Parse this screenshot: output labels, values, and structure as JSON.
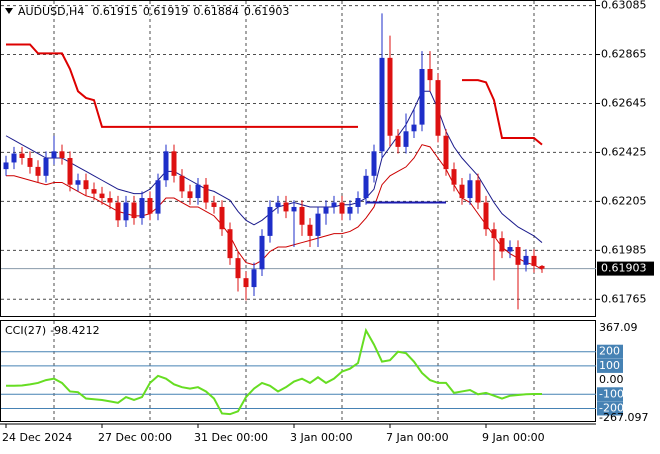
{
  "chart_data": [
    {
      "type": "candlestick",
      "symbol": "AUDUSD,H4",
      "categories": [
        "24 Dec 2024",
        null,
        null,
        null,
        null,
        null,
        null,
        null,
        null,
        null,
        null,
        null,
        "27 Dec 00:00",
        null,
        null,
        null,
        null,
        null,
        null,
        null,
        null,
        null,
        null,
        null,
        "31 Dec 00:00",
        null,
        null,
        null,
        null,
        null,
        null,
        null,
        null,
        null,
        null,
        null,
        "3 Jan 00:00",
        null,
        null,
        null,
        null,
        null,
        null,
        null,
        null,
        null,
        null,
        null,
        "7 Jan 00:00",
        null,
        null,
        null,
        null,
        null,
        null,
        null,
        null,
        null,
        null,
        null,
        "9 Jan 00:00",
        null,
        null,
        null,
        null,
        null,
        null,
        null
      ],
      "open": [
        0.6235,
        0.6238,
        0.6242,
        0.624,
        0.6236,
        0.6232,
        0.624,
        0.6243,
        0.624,
        0.6228,
        0.623,
        0.6226,
        0.6224,
        0.6222,
        0.622,
        0.6212,
        0.622,
        0.6213,
        0.6222,
        0.6215,
        0.623,
        0.6243,
        0.6232,
        0.6225,
        0.6222,
        0.6228,
        0.622,
        0.6218,
        0.6208,
        0.6195,
        0.6186,
        0.6182,
        0.619,
        0.6205,
        0.6218,
        0.622,
        0.6216,
        0.6218,
        0.621,
        0.6205,
        0.6215,
        0.6218,
        0.622,
        0.6215,
        0.6218,
        0.6222,
        0.6232,
        0.6243,
        0.6285,
        0.625,
        0.6245,
        0.6252,
        0.6255,
        0.628,
        0.6275,
        0.625,
        0.6235,
        0.6228,
        0.6222,
        0.623,
        0.622,
        0.6208,
        0.6204,
        0.6198,
        0.62,
        0.6192,
        0.6196,
        0.61915
      ],
      "high": [
        0.6241,
        0.6245,
        0.6245,
        0.6243,
        0.6239,
        0.6243,
        0.625,
        0.6246,
        0.6243,
        0.6233,
        0.6233,
        0.6229,
        0.6227,
        0.6225,
        0.6223,
        0.6223,
        0.6223,
        0.6225,
        0.6225,
        0.6233,
        0.6246,
        0.6246,
        0.6235,
        0.6228,
        0.6231,
        0.6231,
        0.6223,
        0.6221,
        0.6211,
        0.6198,
        0.6189,
        0.6193,
        0.6208,
        0.6221,
        0.6223,
        0.6223,
        0.6221,
        0.6221,
        0.6213,
        0.6218,
        0.6221,
        0.6223,
        0.6223,
        0.6221,
        0.6225,
        0.6235,
        0.6246,
        0.6305,
        0.6295,
        0.6253,
        0.626,
        0.6262,
        0.6288,
        0.6288,
        0.6278,
        0.6253,
        0.6238,
        0.6231,
        0.6233,
        0.6233,
        0.6223,
        0.6211,
        0.6207,
        0.6203,
        0.6203,
        0.6199,
        0.6199,
        0.61919
      ],
      "low": [
        0.6232,
        0.6235,
        0.6237,
        0.6233,
        0.6229,
        0.6229,
        0.6237,
        0.6237,
        0.6225,
        0.6225,
        0.6223,
        0.6221,
        0.6219,
        0.6217,
        0.6209,
        0.6209,
        0.621,
        0.621,
        0.6212,
        0.6212,
        0.6227,
        0.6229,
        0.6222,
        0.6219,
        0.6219,
        0.6217,
        0.6215,
        0.6205,
        0.6192,
        0.618,
        0.6176,
        0.6178,
        0.6187,
        0.6202,
        0.6215,
        0.6213,
        0.62,
        0.6205,
        0.62,
        0.62,
        0.621,
        0.6215,
        0.6212,
        0.6212,
        0.6215,
        0.6219,
        0.6229,
        0.624,
        0.6245,
        0.6242,
        0.6242,
        0.6249,
        0.6252,
        0.627,
        0.6247,
        0.6232,
        0.6225,
        0.6219,
        0.6219,
        0.6217,
        0.6205,
        0.6185,
        0.6195,
        0.6195,
        0.6172,
        0.6189,
        0.61885,
        0.61884
      ],
      "close": [
        0.6238,
        0.6242,
        0.624,
        0.6236,
        0.6232,
        0.624,
        0.6243,
        0.624,
        0.6228,
        0.623,
        0.6226,
        0.6224,
        0.6222,
        0.622,
        0.6212,
        0.622,
        0.6213,
        0.6222,
        0.6215,
        0.623,
        0.6243,
        0.6232,
        0.6225,
        0.6222,
        0.6228,
        0.622,
        0.6218,
        0.6208,
        0.6195,
        0.6186,
        0.6182,
        0.619,
        0.6205,
        0.6218,
        0.622,
        0.6216,
        0.6218,
        0.621,
        0.6205,
        0.6215,
        0.6218,
        0.622,
        0.6215,
        0.6218,
        0.6222,
        0.6232,
        0.6243,
        0.6285,
        0.625,
        0.6245,
        0.6252,
        0.6255,
        0.628,
        0.6275,
        0.625,
        0.6235,
        0.6228,
        0.6222,
        0.623,
        0.622,
        0.6208,
        0.6204,
        0.6198,
        0.62,
        0.6192,
        0.6196,
        0.61915,
        0.61903
      ],
      "up_color": "#1e2ec8",
      "down_color": "#dd1111",
      "ylim": [
        0.6169,
        0.6311
      ],
      "yticks": [
        0.63085,
        0.62865,
        0.62645,
        0.62425,
        0.62205,
        0.61985,
        0.61765
      ],
      "grid": true,
      "overlays": [
        {
          "color": "#1b1b8c",
          "width": 1,
          "values": [
            0.625,
            0.6248,
            0.6246,
            0.6244,
            0.6242,
            0.624,
            0.624,
            0.624,
            0.6238,
            0.6236,
            0.6234,
            0.6232,
            0.623,
            0.6228,
            0.6226,
            0.6225,
            0.6224,
            0.6224,
            0.6226,
            0.623,
            0.6234,
            0.6234,
            0.6232,
            0.623,
            0.6228,
            0.6226,
            0.6225,
            0.6223,
            0.6221,
            0.6216,
            0.6212,
            0.621,
            0.6212,
            0.6215,
            0.6218,
            0.6219,
            0.622,
            0.6219,
            0.6218,
            0.6218,
            0.6218,
            0.6218,
            0.6219,
            0.6219,
            0.622,
            0.6222,
            0.6226,
            0.624,
            0.6245,
            0.625,
            0.6255,
            0.6262,
            0.627,
            0.627,
            0.6262,
            0.6252,
            0.6245,
            0.624,
            0.6236,
            0.6232,
            0.6226,
            0.622,
            0.6215,
            0.6212,
            0.6209,
            0.6207,
            0.6205,
            0.6202
          ]
        },
        {
          "color": "#cc0000",
          "width": 1,
          "values": [
            0.6232,
            0.6232,
            0.6231,
            0.623,
            0.6229,
            0.6228,
            0.6229,
            0.6229,
            0.6227,
            0.6225,
            0.6223,
            0.6222,
            0.622,
            0.6218,
            0.6216,
            0.6215,
            0.6214,
            0.6214,
            0.6215,
            0.6218,
            0.6222,
            0.6222,
            0.622,
            0.6218,
            0.6218,
            0.6216,
            0.6214,
            0.621,
            0.6205,
            0.6198,
            0.6193,
            0.6192,
            0.6194,
            0.6198,
            0.62,
            0.62,
            0.6201,
            0.6202,
            0.6203,
            0.6204,
            0.6205,
            0.6206,
            0.6206,
            0.6207,
            0.6209,
            0.6213,
            0.6218,
            0.6228,
            0.6232,
            0.6234,
            0.6236,
            0.624,
            0.6246,
            0.6245,
            0.624,
            0.6235,
            0.6228,
            0.6222,
            0.622,
            0.6215,
            0.621,
            0.6205,
            0.62,
            0.6197,
            0.6195,
            0.6193,
            0.6192,
            0.619
          ]
        },
        {
          "color": "#dd0000",
          "width": 2,
          "values": [
            0.6291,
            0.6291,
            0.6291,
            0.6291,
            0.6287,
            0.6287,
            0.6287,
            0.6287,
            0.628,
            0.627,
            0.6267,
            0.6266,
            0.6254,
            0.6254,
            0.6254,
            0.6254,
            0.6254,
            0.6254,
            0.6254,
            0.6254,
            0.6254,
            0.6254,
            0.6254,
            0.6254,
            0.6254,
            0.6254,
            0.6254,
            0.6254,
            0.6254,
            0.6254,
            0.6254,
            0.6254,
            0.6254,
            0.6254,
            0.6254,
            0.6254,
            0.6254,
            0.6254,
            0.6254,
            0.6254,
            0.6254,
            0.6254,
            0.6254,
            0.6254,
            0.6254,
            null,
            null,
            null,
            null,
            null,
            null,
            null,
            null,
            null,
            null,
            null,
            null,
            0.6275,
            0.6275,
            0.6275,
            0.6274,
            0.6266,
            0.6249,
            0.6249,
            0.6249,
            0.6249,
            0.6249,
            0.6246
          ]
        },
        {
          "color": "#1b1bb0",
          "width": 2,
          "values": [
            null,
            null,
            null,
            null,
            null,
            null,
            null,
            null,
            null,
            null,
            null,
            null,
            null,
            null,
            null,
            null,
            null,
            null,
            null,
            null,
            null,
            null,
            null,
            null,
            null,
            null,
            null,
            null,
            null,
            null,
            null,
            null,
            null,
            null,
            null,
            null,
            null,
            null,
            null,
            null,
            null,
            null,
            null,
            null,
            null,
            0.622,
            0.622,
            0.622,
            0.622,
            0.622,
            0.622,
            0.622,
            0.622,
            0.622,
            0.622,
            0.622,
            null,
            null,
            null,
            null,
            null,
            null,
            null,
            null,
            null,
            null,
            null,
            null
          ]
        }
      ]
    },
    {
      "type": "line",
      "name": "CCI(27)",
      "color": "#66dd22",
      "values": [
        -40,
        -40,
        -38,
        -30,
        -20,
        0,
        10,
        -20,
        -80,
        -85,
        -130,
        -135,
        -140,
        -150,
        -160,
        -120,
        -140,
        -120,
        -20,
        30,
        10,
        -30,
        -50,
        -60,
        -50,
        -80,
        -130,
        -235,
        -240,
        -220,
        -120,
        -60,
        -20,
        -40,
        -80,
        -50,
        -10,
        10,
        -20,
        20,
        -20,
        10,
        60,
        80,
        120,
        350,
        250,
        130,
        140,
        200,
        190,
        130,
        50,
        0,
        -20,
        -20,
        -90,
        -80,
        -70,
        -100,
        -90,
        -110,
        -130,
        -110,
        -105,
        -100,
        -98,
        -98.4212
      ],
      "ylim": [
        -267.097,
        367.09
      ],
      "yticks": [
        367.09,
        {
          "value": 0,
          "label": "0.00"
        },
        -267.097
      ],
      "levels": [
        200,
        100,
        -100,
        -200
      ],
      "level_color": "#4682b4"
    }
  ]
}
